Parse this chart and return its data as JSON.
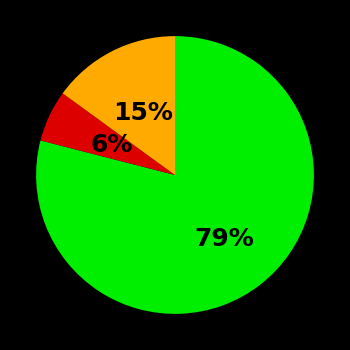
{
  "slices": [
    79,
    6,
    15
  ],
  "colors": [
    "#00ee00",
    "#dd0000",
    "#ffaa00"
  ],
  "labels": [
    "79%",
    "6%",
    "15%"
  ],
  "background_color": "#000000",
  "text_color": "#000000",
  "label_fontsize": 18,
  "label_fontweight": "bold",
  "startangle": 90,
  "figsize": [
    3.5,
    3.5
  ],
  "dpi": 100,
  "label_radii": [
    0.58,
    0.5,
    0.5
  ]
}
